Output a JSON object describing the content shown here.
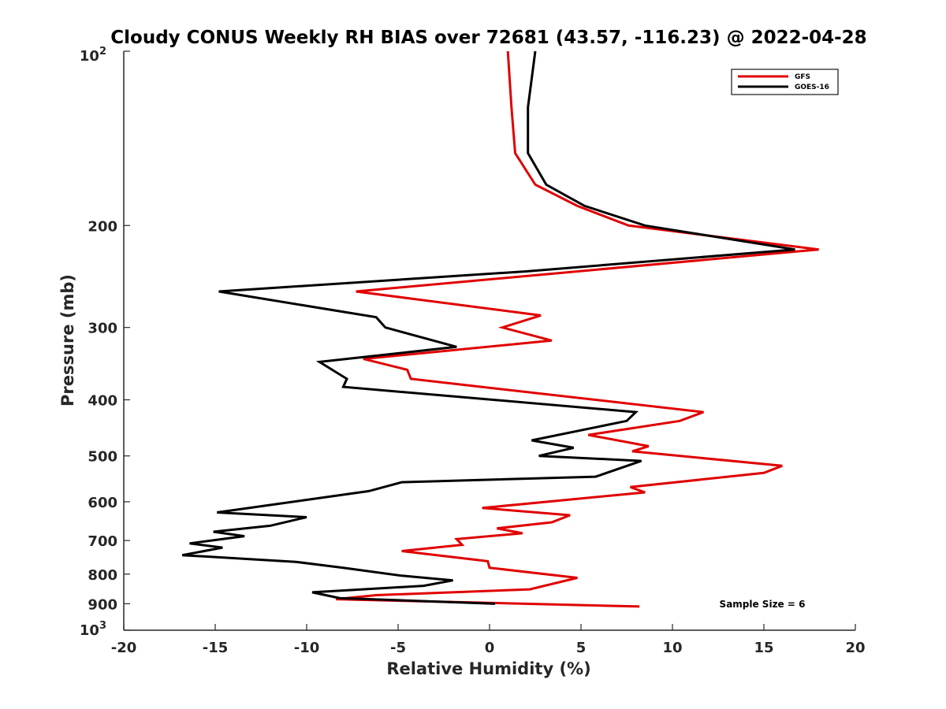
{
  "chart_data": {
    "type": "line",
    "title": "Cloudy CONUS Weekly RH BIAS over 72681 (43.57, -116.23) @ 2022-04-28",
    "xlabel": "Relative Humidity (%)",
    "ylabel": "Pressure (mb)",
    "xlim": [
      -20,
      20
    ],
    "ylim": [
      100,
      1000
    ],
    "y_scale": "log",
    "y_reversed": true,
    "x_ticks": [
      "-20",
      "-15",
      "-10",
      "-5",
      "0",
      "5",
      "10",
      "15",
      "20"
    ],
    "y_ticks": [
      {
        "value": 100,
        "base": "10",
        "exp": "2"
      },
      {
        "value": 200,
        "label": "200"
      },
      {
        "value": 300,
        "label": "300"
      },
      {
        "value": 400,
        "label": "400"
      },
      {
        "value": 500,
        "label": "500"
      },
      {
        "value": 600,
        "label": "600"
      },
      {
        "value": 700,
        "label": "700"
      },
      {
        "value": 800,
        "label": "800"
      },
      {
        "value": 900,
        "label": "900"
      },
      {
        "value": 1000,
        "base": "10",
        "exp": "3"
      }
    ],
    "grid": false,
    "legend_position": "top-right",
    "series": [
      {
        "name": "GFS",
        "color": "#e00000",
        "points": [
          [
            1.0,
            100
          ],
          [
            1.2,
            125
          ],
          [
            1.4,
            150
          ],
          [
            2.5,
            170
          ],
          [
            4.8,
            185
          ],
          [
            7.6,
            200
          ],
          [
            18.0,
            220
          ],
          [
            -7.3,
            260
          ],
          [
            2.8,
            286
          ],
          [
            0.7,
            300
          ],
          [
            3.4,
            316
          ],
          [
            -6.9,
            340
          ],
          [
            -4.5,
            355
          ],
          [
            -4.3,
            368
          ],
          [
            11.7,
            420
          ],
          [
            10.4,
            435
          ],
          [
            5.4,
            460
          ],
          [
            8.7,
            481
          ],
          [
            7.8,
            491
          ],
          [
            16.0,
            520
          ],
          [
            15.0,
            535
          ],
          [
            7.7,
            566
          ],
          [
            8.5,
            578
          ],
          [
            -0.4,
            615
          ],
          [
            4.4,
            633
          ],
          [
            3.4,
            651
          ],
          [
            0.4,
            667
          ],
          [
            1.8,
            680
          ],
          [
            -1.8,
            696
          ],
          [
            -1.5,
            712
          ],
          [
            -4.8,
            730
          ],
          [
            -0.1,
            760
          ],
          [
            0.0,
            780
          ],
          [
            4.8,
            812
          ],
          [
            2.2,
            850
          ],
          [
            -6.2,
            870
          ],
          [
            -8.4,
            884
          ],
          [
            8.2,
            910
          ]
        ]
      },
      {
        "name": "GOES-16",
        "color": "#000000",
        "points": [
          [
            2.5,
            100
          ],
          [
            2.1,
            125
          ],
          [
            2.1,
            150
          ],
          [
            3.1,
            170
          ],
          [
            5.2,
            185
          ],
          [
            8.5,
            200
          ],
          [
            16.7,
            220
          ],
          [
            2.0,
            240
          ],
          [
            -14.8,
            260
          ],
          [
            -6.2,
            288
          ],
          [
            -5.7,
            300
          ],
          [
            -1.8,
            324
          ],
          [
            -9.3,
            344
          ],
          [
            -7.8,
            368
          ],
          [
            -8.0,
            380
          ],
          [
            8.0,
            420
          ],
          [
            7.5,
            435
          ],
          [
            2.3,
            470
          ],
          [
            4.6,
            484
          ],
          [
            2.7,
            500
          ],
          [
            8.3,
            510
          ],
          [
            5.8,
            543
          ],
          [
            -4.8,
            555
          ],
          [
            -6.6,
            575
          ],
          [
            -14.9,
            626
          ],
          [
            -10.0,
            638
          ],
          [
            -12.0,
            660
          ],
          [
            -15.1,
            676
          ],
          [
            -13.4,
            688
          ],
          [
            -16.4,
            708
          ],
          [
            -14.6,
            720
          ],
          [
            -16.8,
            742
          ],
          [
            -10.6,
            762
          ],
          [
            -8.0,
            780
          ],
          [
            -4.8,
            805
          ],
          [
            -2.0,
            820
          ],
          [
            -3.6,
            838
          ],
          [
            -9.7,
            860
          ],
          [
            -8.2,
            880
          ],
          [
            0.3,
            900
          ]
        ]
      }
    ],
    "annotation": "Sample Size = 6"
  }
}
